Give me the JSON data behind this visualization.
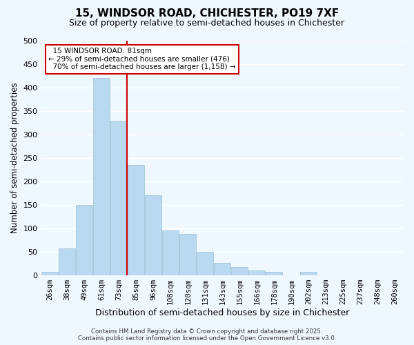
{
  "title_line1": "15, WINDSOR ROAD, CHICHESTER, PO19 7XF",
  "title_line2": "Size of property relative to semi-detached houses in Chichester",
  "xlabel": "Distribution of semi-detached houses by size in Chichester",
  "ylabel": "Number of semi-detached properties",
  "bar_labels": [
    "26sqm",
    "38sqm",
    "49sqm",
    "61sqm",
    "73sqm",
    "85sqm",
    "96sqm",
    "108sqm",
    "120sqm",
    "131sqm",
    "143sqm",
    "155sqm",
    "166sqm",
    "178sqm",
    "190sqm",
    "202sqm",
    "213sqm",
    "225sqm",
    "237sqm",
    "248sqm",
    "260sqm"
  ],
  "bar_values": [
    8,
    57,
    150,
    420,
    330,
    235,
    170,
    96,
    88,
    50,
    27,
    18,
    10,
    8,
    0,
    8,
    0,
    0,
    0,
    0,
    0
  ],
  "bar_color": "#b8d9f0",
  "bar_edge_color": "#9bbdd4",
  "property_label": "15 WINDSOR ROAD: 81sqm",
  "smaller_pct": 29,
  "smaller_count": 476,
  "larger_pct": 70,
  "larger_count": 1158,
  "annotation_box_color": "#ffffff",
  "annotation_box_edge": "#cc0000",
  "vline_color": "#cc0000",
  "vline_bar_index": 4,
  "ylim": [
    0,
    500
  ],
  "yticks": [
    0,
    50,
    100,
    150,
    200,
    250,
    300,
    350,
    400,
    450,
    500
  ],
  "background_color": "#f0f8ff",
  "grid_color": "#ffffff",
  "footer_line1": "Contains HM Land Registry data © Crown copyright and database right 2025.",
  "footer_line2": "Contains public sector information licensed under the Open Government Licence v3.0."
}
